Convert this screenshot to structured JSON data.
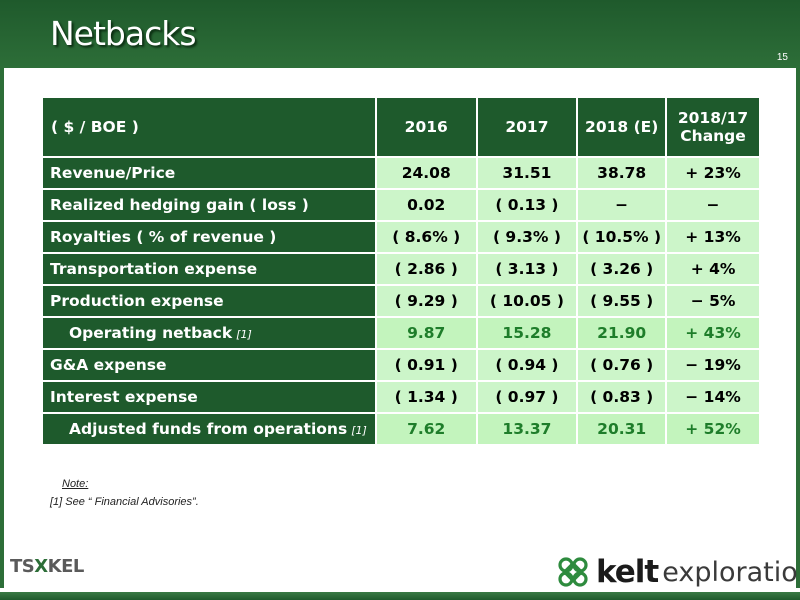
{
  "slide": {
    "title": "Netbacks",
    "page_number": "15"
  },
  "table": {
    "headers": {
      "label": "( $ / BOE )",
      "col1": "2016",
      "col2": "2017",
      "col3": "2018 (E)",
      "col4_line1": "2018/17",
      "col4_line2": "Change"
    },
    "rows": [
      {
        "label": "Revenue/Price",
        "footnote": "",
        "v2016": "24.08",
        "v2017": "31.51",
        "v2018": "38.78",
        "change": "+ 23%"
      },
      {
        "label": "Realized hedging gain ( loss )",
        "footnote": "",
        "v2016": "0.02",
        "v2017": "( 0.13 )",
        "v2018": "−",
        "change": "−"
      },
      {
        "label": "Royalties ( % of revenue )",
        "footnote": "",
        "v2016": "( 8.6% )",
        "v2017": "( 9.3% )",
        "v2018": "( 10.5% )",
        "change": "+ 13%"
      },
      {
        "label": "Transportation expense",
        "footnote": "",
        "v2016": "( 2.86 )",
        "v2017": "( 3.13 )",
        "v2018": "( 3.26 )",
        "change": "+ 4%"
      },
      {
        "label": "Production expense",
        "footnote": "",
        "v2016": "( 9.29 )",
        "v2017": "( 10.05 )",
        "v2018": "( 9.55 )",
        "change": "− 5%"
      },
      {
        "label": "Operating netback",
        "footnote": "[1]",
        "v2016": "9.87",
        "v2017": "15.28",
        "v2018": "21.90",
        "change": "+ 43%"
      },
      {
        "label": "G&A expense",
        "footnote": "",
        "v2016": "( 0.91 )",
        "v2017": "( 0.94 )",
        "v2018": "( 0.76 )",
        "change": "− 19%"
      },
      {
        "label": "Interest expense",
        "footnote": "",
        "v2016": "( 1.34 )",
        "v2017": "( 0.97 )",
        "v2018": "( 0.83 )",
        "change": "− 14%"
      },
      {
        "label": "Adjusted funds from operations",
        "footnote": "[1]",
        "v2016": "7.62",
        "v2017": "13.37",
        "v2018": "20.31",
        "change": "+ 52%"
      }
    ]
  },
  "note": {
    "title": "Note:",
    "line": "[1] See “ Financial Advisories”."
  },
  "logos": {
    "tsx_left": "TS",
    "tsx_cross": "X",
    "tsx_right": "KEL",
    "company_bold": "kelt",
    "company_rest": "exploration"
  },
  "colors": {
    "header_green": "#1e5a2c",
    "cell_green": "#ccf5c9",
    "subtotal_text": "#1e7d2a"
  }
}
